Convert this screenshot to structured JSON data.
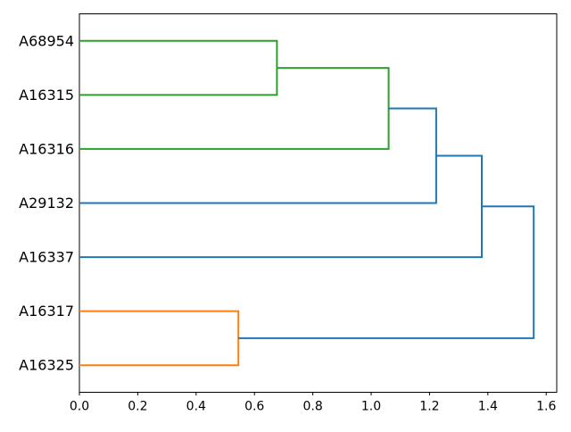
{
  "chart_data": {
    "type": "dendrogram",
    "title": "",
    "xlabel": "",
    "ylabel": "",
    "orientation": "labels-left-root-right",
    "background": "#ffffff",
    "axis_color": "#000000",
    "grid": false,
    "legend": false,
    "x_ticks": [
      "0.0",
      "0.2",
      "0.4",
      "0.6",
      "0.8",
      "1.0",
      "1.2",
      "1.4",
      "1.6"
    ],
    "x_tick_values": [
      0.0,
      0.2,
      0.4,
      0.6,
      0.8,
      1.0,
      1.2,
      1.4,
      1.6
    ],
    "xlim": [
      0.0,
      1.636
    ],
    "leaves_top_to_bottom": [
      "A68954",
      "A16315",
      "A16316",
      "A29132",
      "A16337",
      "A16317",
      "A16325"
    ],
    "link_colors": {
      "blue": "#1f77b4",
      "orange": "#ff7f0e",
      "green": "#2ca02c"
    },
    "merges": [
      {
        "id": "M1",
        "pair": [
          "A68954",
          "A16315"
        ],
        "distance": 0.677,
        "color": "green"
      },
      {
        "id": "M2",
        "pair": [
          "M1",
          "A16316"
        ],
        "distance": 1.06,
        "color": "green"
      },
      {
        "id": "M3",
        "pair": [
          "M2",
          "A29132"
        ],
        "distance": 1.223,
        "color": "blue"
      },
      {
        "id": "M4",
        "pair": [
          "M3",
          "A16337"
        ],
        "distance": 1.379,
        "color": "blue"
      },
      {
        "id": "M5",
        "pair": [
          "A16317",
          "A16325"
        ],
        "distance": 0.545,
        "color": "orange"
      },
      {
        "id": "M6",
        "pair": [
          "M4",
          "M5"
        ],
        "distance": 1.557,
        "color": "blue"
      }
    ]
  }
}
